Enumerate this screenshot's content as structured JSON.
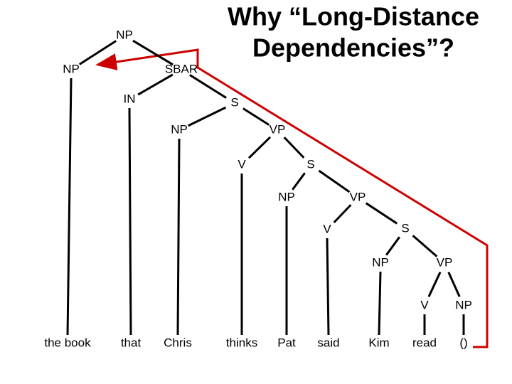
{
  "title": [
    "Why “Long-Distance",
    "Dependencies”?"
  ],
  "nodes": [
    "NP",
    "NP",
    "SBAR",
    "IN",
    "S",
    "NP",
    "VP",
    "V",
    "S",
    "NP",
    "VP",
    "V",
    "S",
    "NP",
    "VP",
    "V",
    "NP"
  ],
  "leaves": [
    "the book",
    "that",
    "Chris",
    "thinks",
    "Pat",
    "said",
    "Kim",
    "read",
    "()"
  ]
}
